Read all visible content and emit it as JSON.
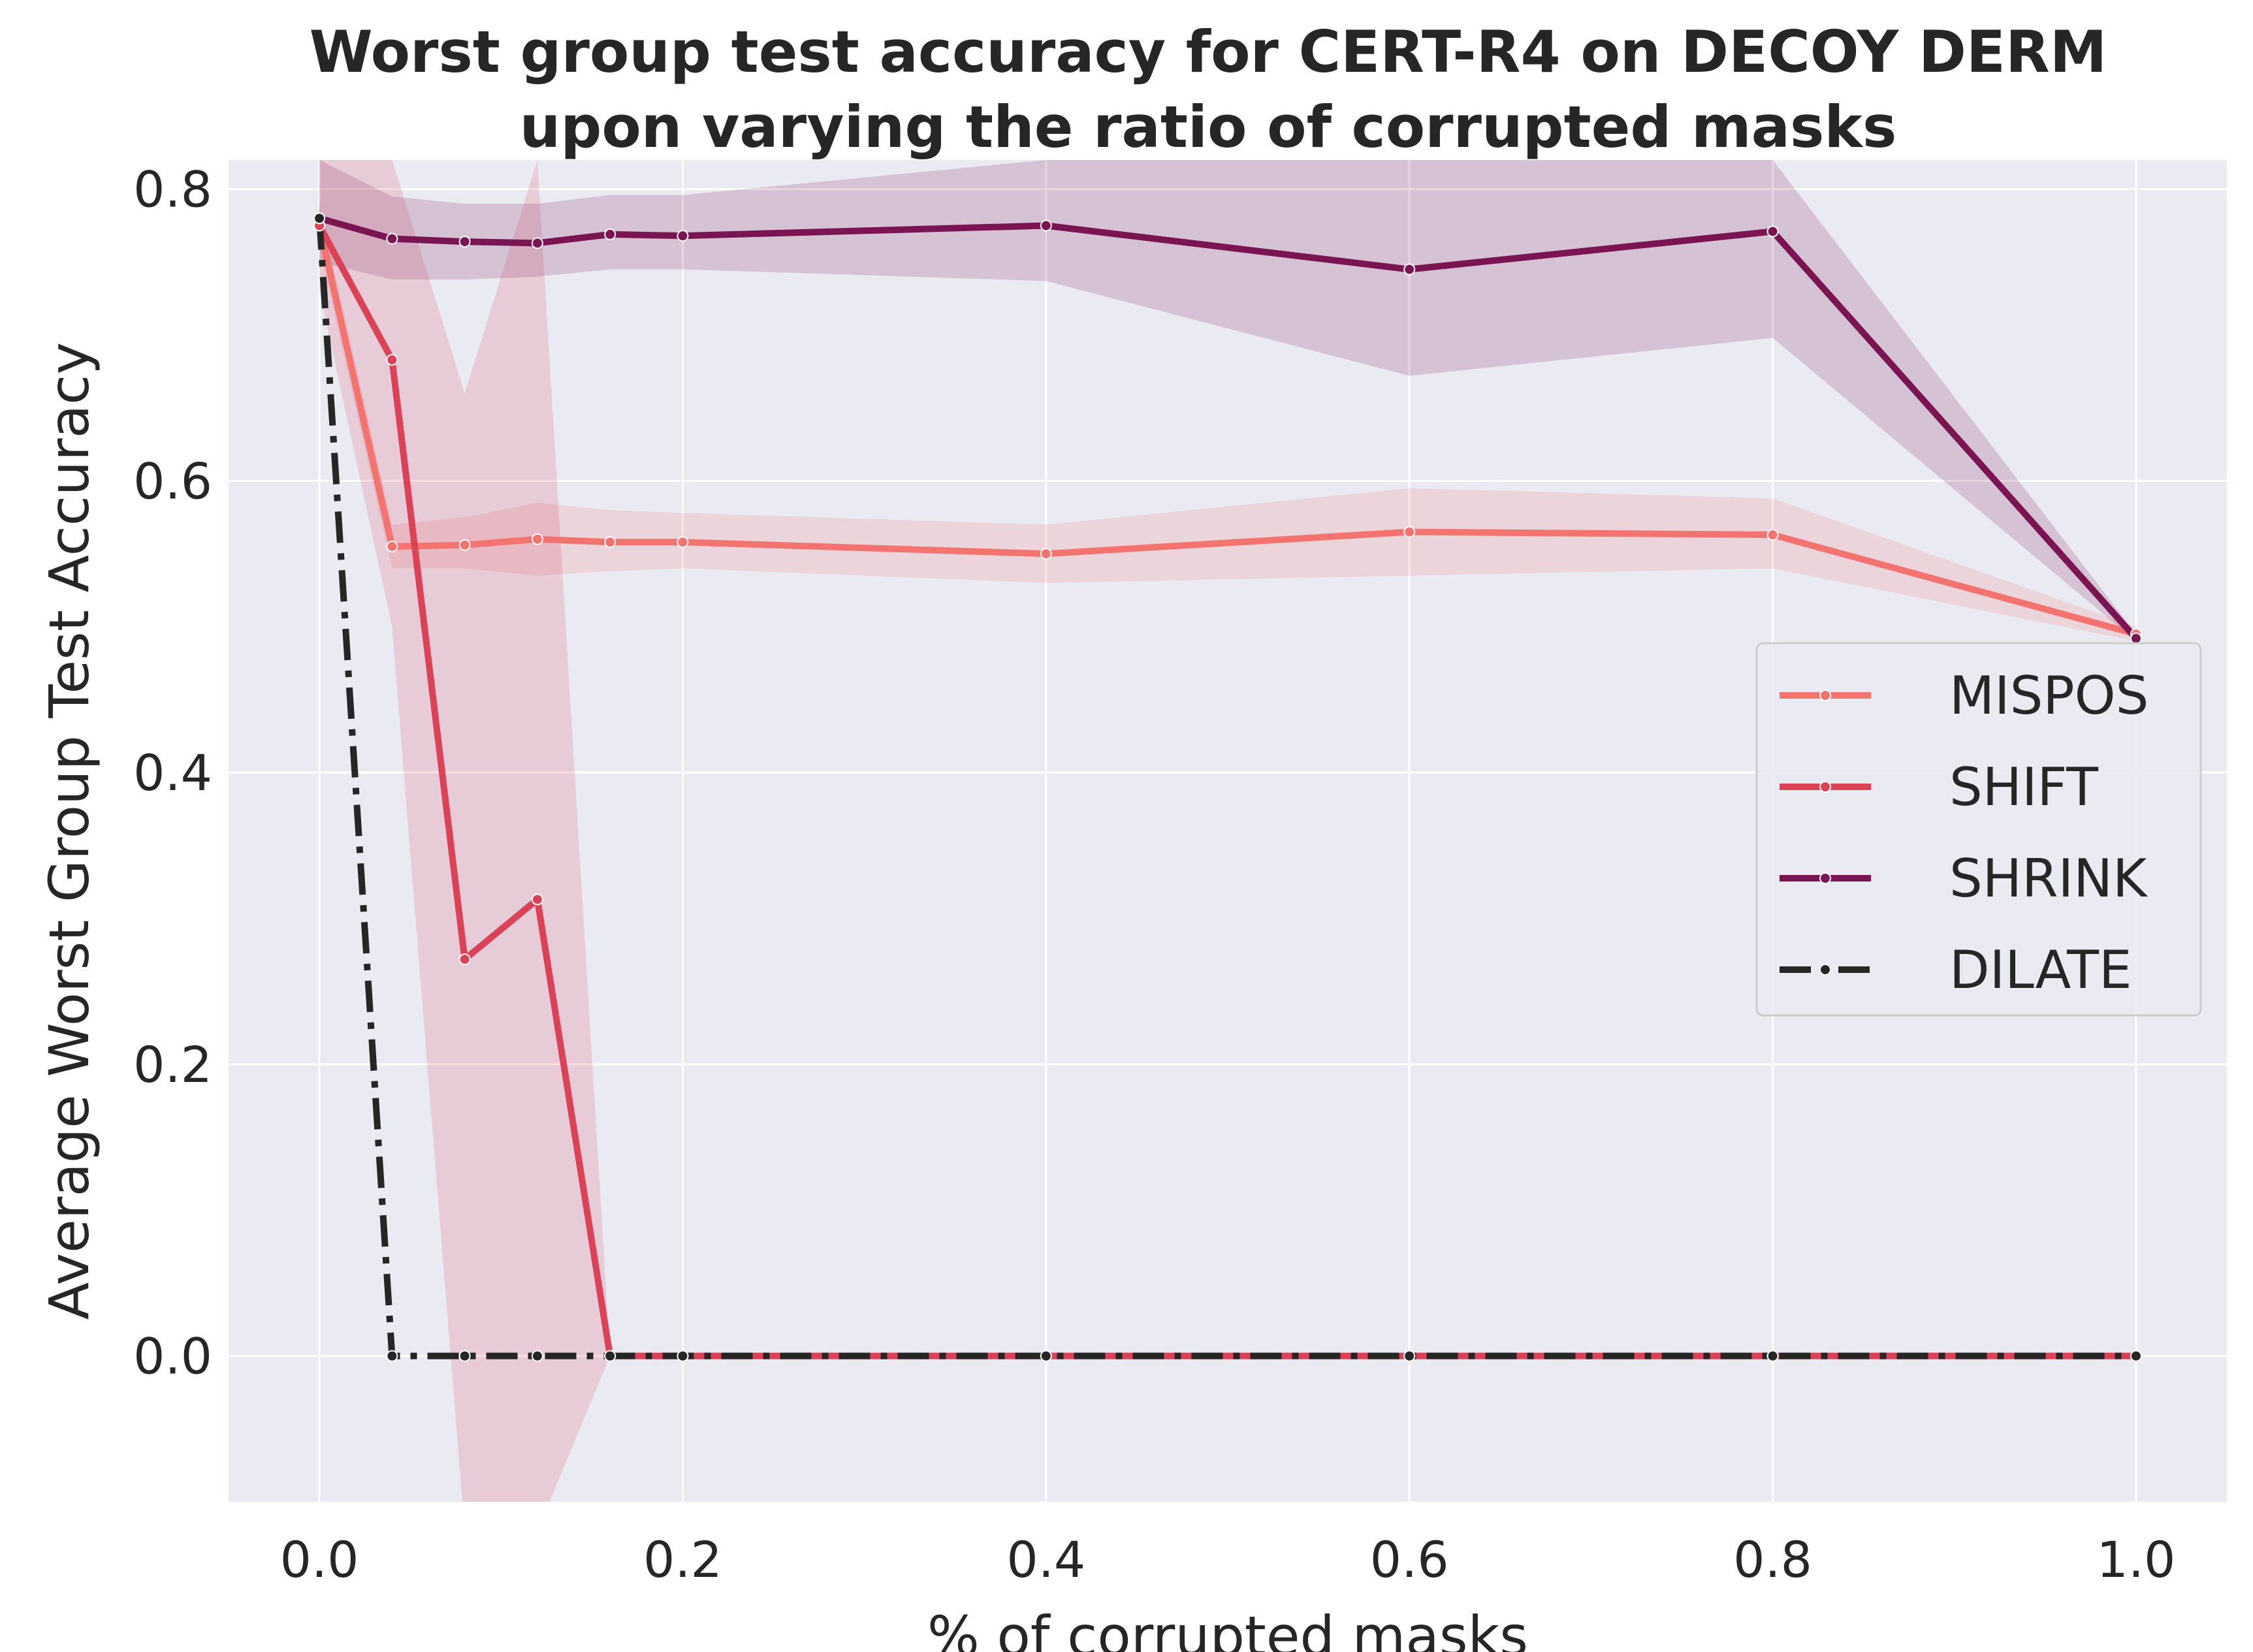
{
  "chart_data": {
    "type": "line",
    "title_lines": [
      "Worst group test accuracy for CERT-R4 on DECOY DERM",
      "upon varying the ratio of corrupted masks"
    ],
    "xlabel": "% of corrupted masks",
    "ylabel": "Average Worst Group Test Accuracy",
    "xlim": [
      -0.05,
      1.05
    ],
    "ylim": [
      -0.1,
      0.82
    ],
    "xticks": [
      0.0,
      0.2,
      0.4,
      0.6,
      0.8,
      1.0
    ],
    "xtick_labels": [
      "0.0",
      "0.2",
      "0.4",
      "0.6",
      "0.8",
      "1.0"
    ],
    "yticks": [
      0.0,
      0.2,
      0.4,
      0.6,
      0.8
    ],
    "ytick_labels": [
      "0.0",
      "0.2",
      "0.4",
      "0.6",
      "0.8"
    ],
    "grid": true,
    "background": "#eaeaf2",
    "legend_position": "center-right",
    "x": [
      0.0,
      0.04,
      0.08,
      0.12,
      0.16,
      0.2,
      0.4,
      0.6,
      0.8,
      1.0
    ],
    "series": [
      {
        "name": "MISPOS",
        "color": "#f37370",
        "dash": "solid",
        "values": [
          0.775,
          0.555,
          0.556,
          0.56,
          0.558,
          0.558,
          0.55,
          0.565,
          0.563,
          0.495
        ],
        "lower": [
          0.76,
          0.54,
          0.54,
          0.535,
          0.538,
          0.54,
          0.53,
          0.535,
          0.54,
          0.49
        ],
        "upper": [
          0.79,
          0.57,
          0.575,
          0.585,
          0.58,
          0.578,
          0.57,
          0.595,
          0.588,
          0.5
        ]
      },
      {
        "name": "SHIFT",
        "color": "#db4257",
        "dash": "solid",
        "values": [
          0.775,
          0.683,
          0.272,
          0.313,
          0.0,
          0.0,
          0.0,
          0.0,
          0.0,
          0.0
        ],
        "lower": [
          0.73,
          0.5,
          -0.12,
          -0.12,
          0.0,
          0.0,
          0.0,
          0.0,
          0.0,
          0.0
        ],
        "upper": [
          0.82,
          0.82,
          0.66,
          0.82,
          0.0,
          0.0,
          0.0,
          0.0,
          0.0,
          0.0
        ]
      },
      {
        "name": "SHRINK",
        "color": "#7b1551",
        "dash": "solid",
        "values": [
          0.78,
          0.766,
          0.764,
          0.763,
          0.769,
          0.768,
          0.775,
          0.745,
          0.771,
          0.492
        ],
        "lower": [
          0.75,
          0.738,
          0.738,
          0.74,
          0.745,
          0.745,
          0.737,
          0.672,
          0.698,
          0.49
        ],
        "upper": [
          0.82,
          0.795,
          0.79,
          0.79,
          0.796,
          0.796,
          0.82,
          0.82,
          0.82,
          0.495
        ]
      },
      {
        "name": "DILATE",
        "color": "#262626",
        "dash": "dashdot",
        "values": [
          0.78,
          0.0,
          0.0,
          0.0,
          0.0,
          0.0,
          0.0,
          0.0,
          0.0,
          0.0
        ],
        "lower": [
          0.78,
          0.0,
          0.0,
          0.0,
          0.0,
          0.0,
          0.0,
          0.0,
          0.0,
          0.0
        ],
        "upper": [
          0.78,
          0.0,
          0.0,
          0.0,
          0.0,
          0.0,
          0.0,
          0.0,
          0.0,
          0.0
        ]
      }
    ]
  }
}
